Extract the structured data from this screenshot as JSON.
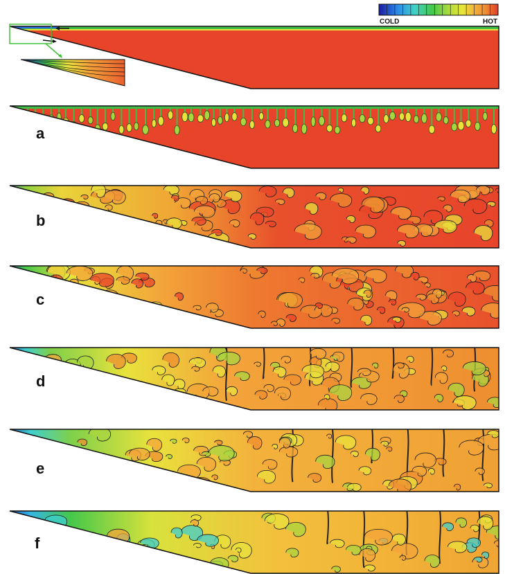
{
  "legend": {
    "cold_label": "COLD",
    "hot_label": "HOT",
    "colors": [
      "#1a1aa0",
      "#1f4fd0",
      "#2a86e8",
      "#35b6e6",
      "#40d2c8",
      "#3ccf8a",
      "#45c84a",
      "#86d13e",
      "#b7dd3a",
      "#e6e83a",
      "#f4d03c",
      "#f3b23c",
      "#ee8a35",
      "#e8602e",
      "#e03c26"
    ]
  },
  "panels": [
    {
      "label": "",
      "id": "initial"
    },
    {
      "label": "a",
      "id": "a"
    },
    {
      "label": "b",
      "id": "b"
    },
    {
      "label": "c",
      "id": "c"
    },
    {
      "label": "d",
      "id": "d"
    },
    {
      "label": "e",
      "id": "e"
    },
    {
      "label": "f",
      "id": "f"
    }
  ],
  "palette": {
    "hot": "#e8442a",
    "warm_orange": "#ee8e30",
    "orange": "#f3a43a",
    "yellow": "#e9e23c",
    "light_green": "#a9d640",
    "green": "#3fbf4a",
    "cyan": "#3fcfcf",
    "blue": "#2a6fe0",
    "deep_blue": "#1a2aa8",
    "outline": "#111111",
    "zoom_box": "#3fbf3a"
  }
}
